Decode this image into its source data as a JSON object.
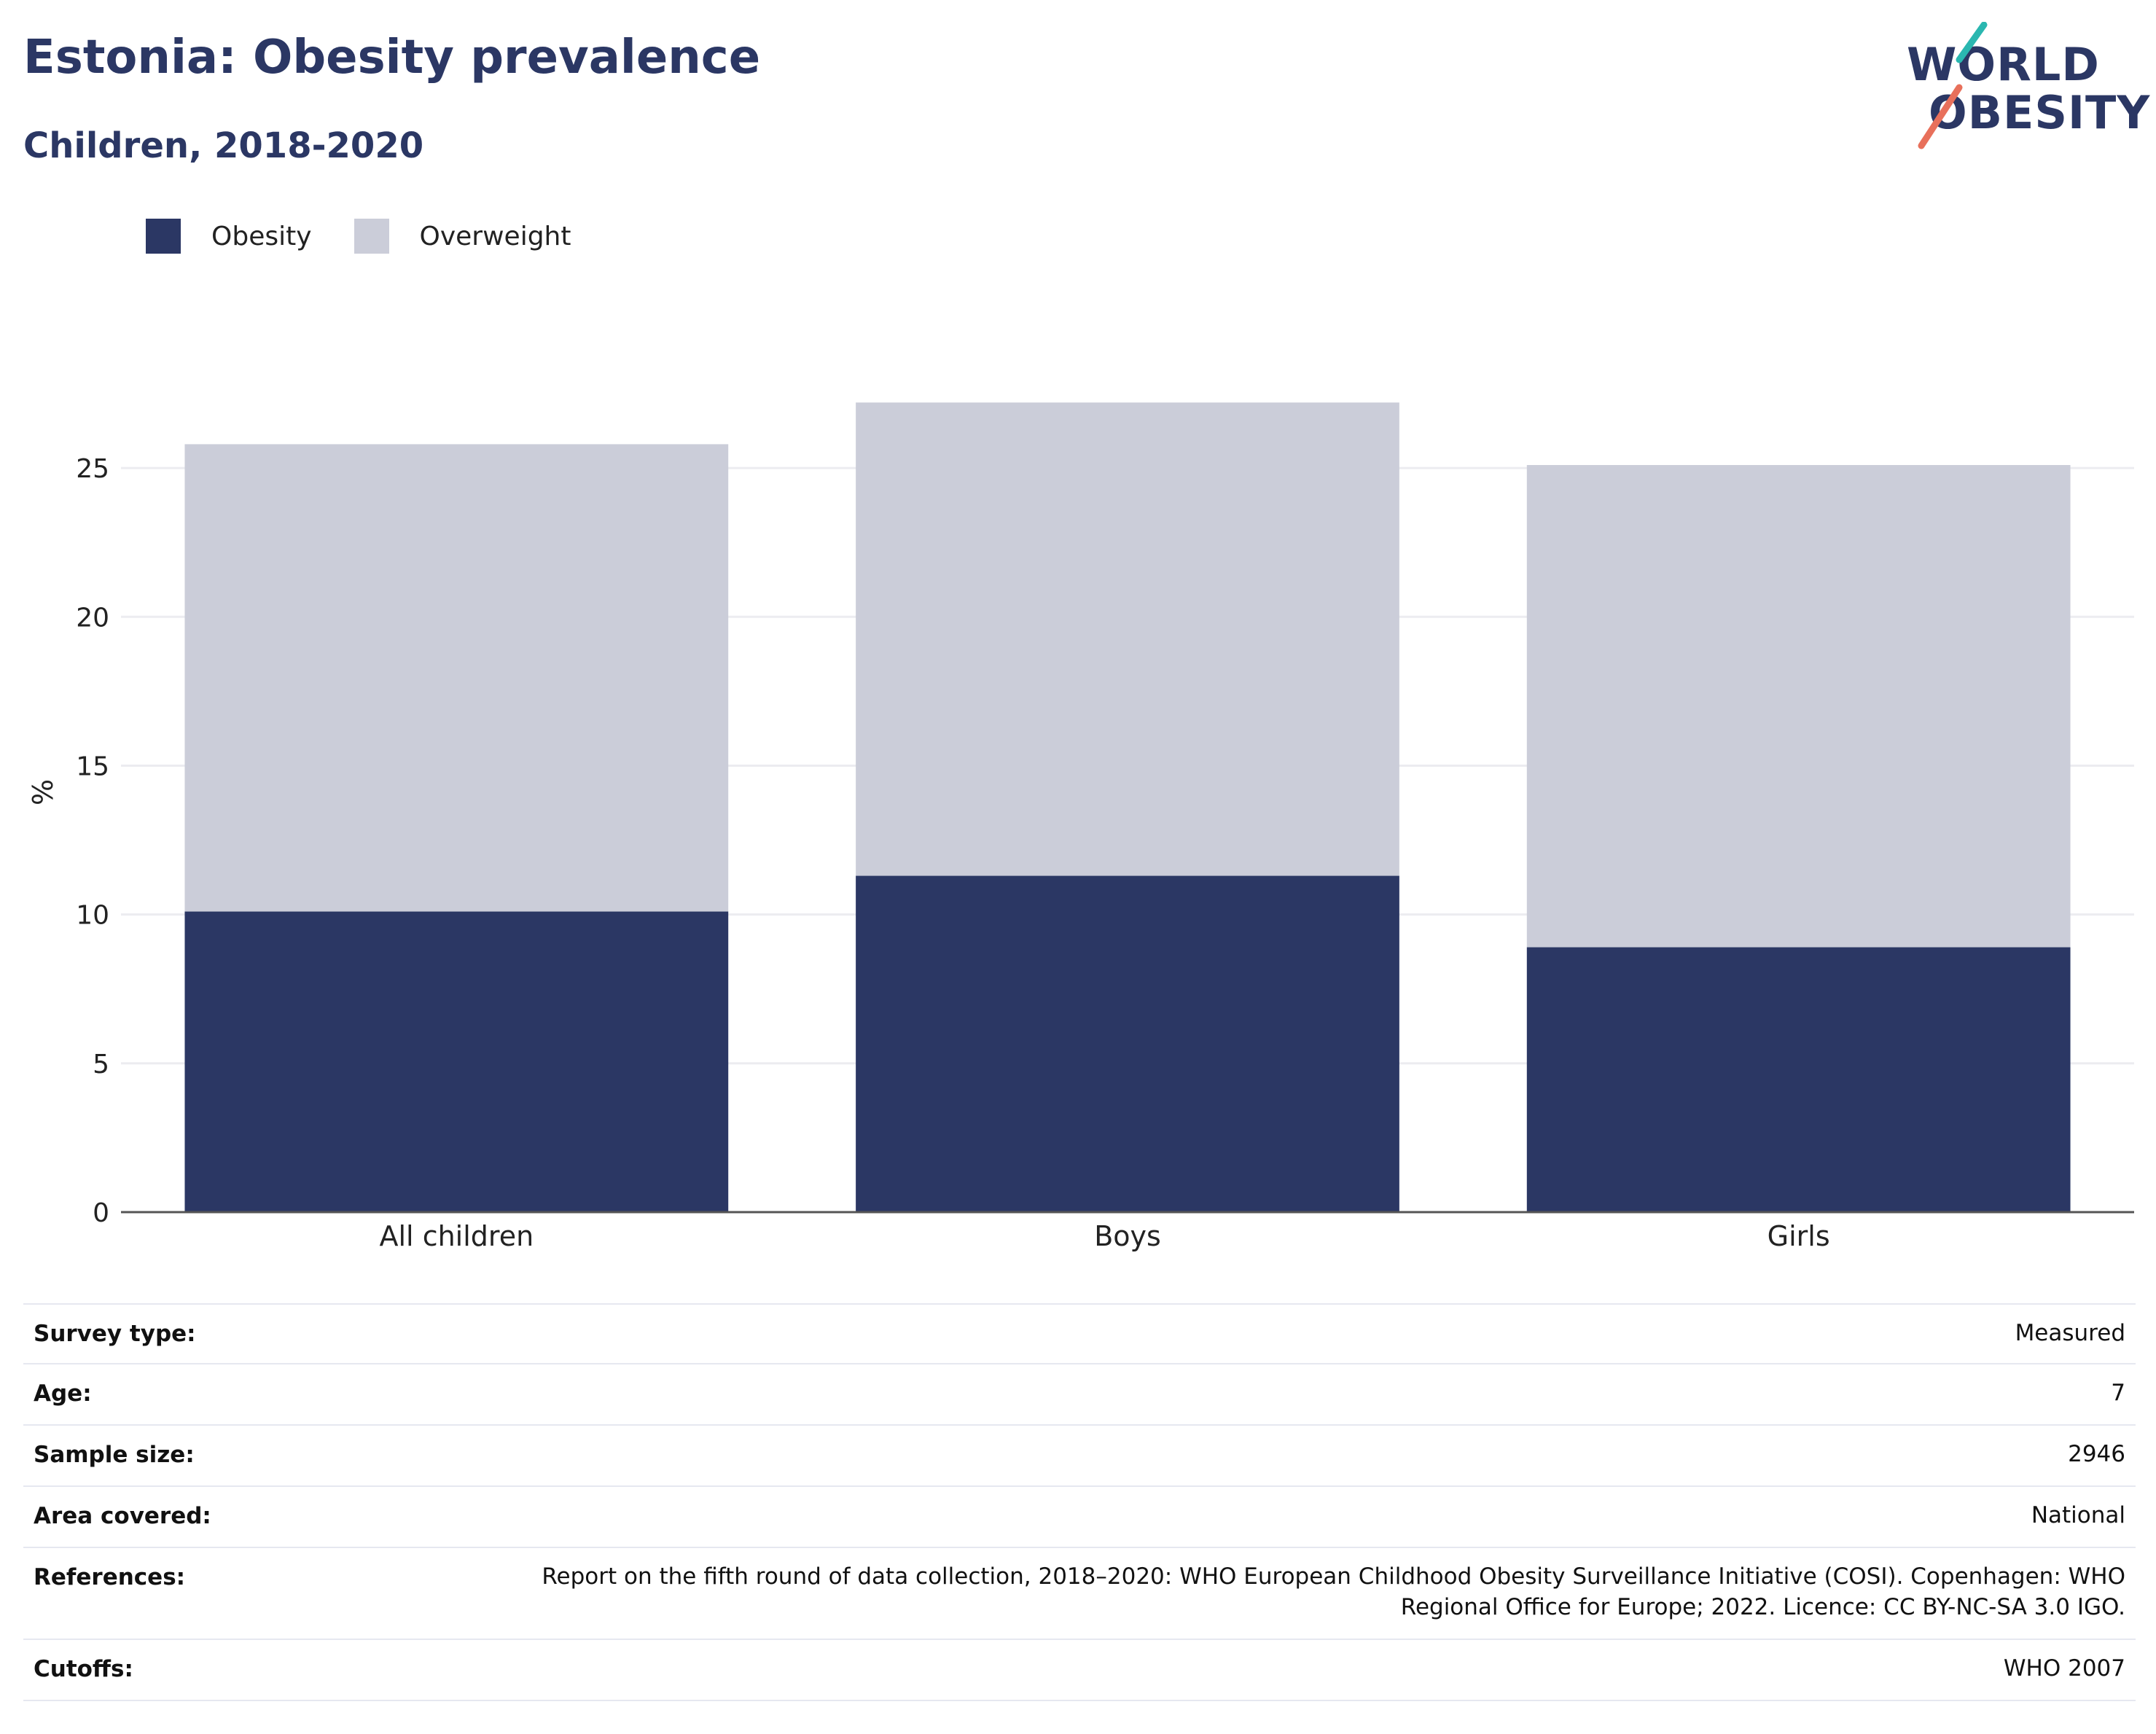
{
  "header": {
    "title": "Estonia: Obesity prevalence",
    "subtitle": "Children, 2018-2020"
  },
  "logo": {
    "line1": "WORLD",
    "line2": "OBESITY"
  },
  "legend": [
    {
      "label": "Obesity",
      "color": "#2b3764"
    },
    {
      "label": "Overweight",
      "color": "#cbcdd9"
    }
  ],
  "chart_data": {
    "type": "bar",
    "stacked": true,
    "categories": [
      "All children",
      "Boys",
      "Girls"
    ],
    "series": [
      {
        "name": "Obesity",
        "color": "#2b3764",
        "values": [
          10.1,
          11.3,
          8.9
        ]
      },
      {
        "name": "Overweight",
        "color": "#cbcdd9",
        "values": [
          15.7,
          15.9,
          16.2
        ]
      }
    ],
    "ylabel": "%",
    "ylim": [
      0,
      27.5
    ],
    "yticks": [
      0,
      5,
      10,
      15,
      20,
      25
    ],
    "grid": true,
    "legend_position": "top-left"
  },
  "meta": [
    {
      "key": "Survey type:",
      "value": "Measured"
    },
    {
      "key": "Age:",
      "value": "7"
    },
    {
      "key": "Sample size:",
      "value": "2946"
    },
    {
      "key": "Area covered:",
      "value": "National"
    },
    {
      "key": "References:",
      "value": "Report on the fifth round of data collection, 2018–2020: WHO European Childhood Obesity Surveillance Initiative (COSI). Copenhagen: WHO Regional Office for Europe; 2022. Licence: CC BY-NC-SA 3.0 IGO."
    },
    {
      "key": "Cutoffs:",
      "value": "WHO 2007"
    }
  ]
}
